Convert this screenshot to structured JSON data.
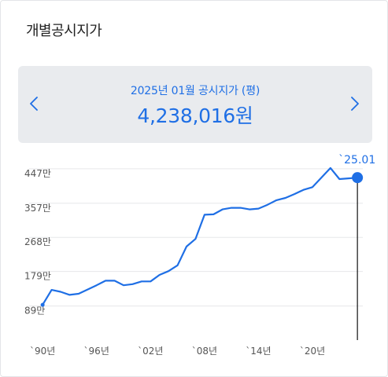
{
  "title": "개별공시지가",
  "summary": {
    "period_label": "2025년 01월 공시지가 (평)",
    "price": "4,238,016원"
  },
  "nav": {
    "prev_icon": "chevron-left-icon",
    "next_icon": "chevron-right-icon"
  },
  "colors": {
    "accent": "#1f6fe5",
    "panel": "#e9ebee",
    "grid": "#e6e7ea",
    "tick_text": "#555555"
  },
  "chart_data": {
    "type": "line",
    "xlabel": "",
    "ylabel": "",
    "x_range": [
      1988.5,
      2025.6
    ],
    "y_range": [
      0,
      500
    ],
    "y_ticks": [
      {
        "value": 89,
        "label": "89만"
      },
      {
        "value": 179,
        "label": "179만"
      },
      {
        "value": 268,
        "label": "268만"
      },
      {
        "value": 357,
        "label": "357만"
      },
      {
        "value": 447,
        "label": "447만"
      }
    ],
    "x_ticks": [
      {
        "value": 1990,
        "label": "`90년"
      },
      {
        "value": 1996,
        "label": "`96년"
      },
      {
        "value": 2002,
        "label": "`02년"
      },
      {
        "value": 2008,
        "label": "`08년"
      },
      {
        "value": 2014,
        "label": "`14년"
      },
      {
        "value": 2020,
        "label": "`20년"
      }
    ],
    "highlight": {
      "x": 2025.0,
      "y": 423.8,
      "label": "`25.01"
    },
    "series": [
      {
        "values": [
          {
            "x": 1990,
            "y": 92
          },
          {
            "x": 1991,
            "y": 131
          },
          {
            "x": 1992,
            "y": 126
          },
          {
            "x": 1993,
            "y": 118
          },
          {
            "x": 1994,
            "y": 121
          },
          {
            "x": 1995,
            "y": 132
          },
          {
            "x": 1996,
            "y": 143
          },
          {
            "x": 1997,
            "y": 155
          },
          {
            "x": 1998,
            "y": 155
          },
          {
            "x": 1999,
            "y": 143
          },
          {
            "x": 2000,
            "y": 146
          },
          {
            "x": 2001,
            "y": 153
          },
          {
            "x": 2002,
            "y": 153
          },
          {
            "x": 2003,
            "y": 170
          },
          {
            "x": 2004,
            "y": 180
          },
          {
            "x": 2005,
            "y": 195
          },
          {
            "x": 2006,
            "y": 244
          },
          {
            "x": 2007,
            "y": 264
          },
          {
            "x": 2008,
            "y": 327
          },
          {
            "x": 2009,
            "y": 328
          },
          {
            "x": 2010,
            "y": 341
          },
          {
            "x": 2011,
            "y": 345
          },
          {
            "x": 2012,
            "y": 345
          },
          {
            "x": 2013,
            "y": 341
          },
          {
            "x": 2014,
            "y": 343
          },
          {
            "x": 2015,
            "y": 353
          },
          {
            "x": 2016,
            "y": 365
          },
          {
            "x": 2017,
            "y": 371
          },
          {
            "x": 2018,
            "y": 381
          },
          {
            "x": 2019,
            "y": 392
          },
          {
            "x": 2020,
            "y": 399
          },
          {
            "x": 2021,
            "y": 424
          },
          {
            "x": 2022,
            "y": 449
          },
          {
            "x": 2023,
            "y": 420
          },
          {
            "x": 2024,
            "y": 422
          },
          {
            "x": 2025,
            "y": 423.8
          }
        ]
      }
    ]
  }
}
